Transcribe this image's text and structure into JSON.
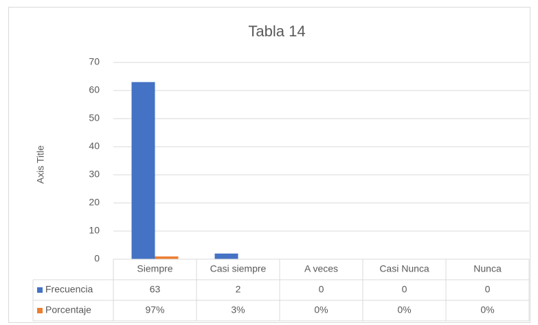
{
  "chart_data": {
    "type": "bar",
    "title": "Tabla 14",
    "y_axis_label": "Axis Title",
    "categories": [
      "Siempre",
      "Casi siempre",
      "A veces",
      "Casi Nunca",
      "Nunca"
    ],
    "series": [
      {
        "name": "Frecuencia",
        "color": "#4472c4",
        "values": [
          63,
          2,
          0,
          0,
          0
        ]
      },
      {
        "name": "Porcentaje",
        "color": "#ed7d31",
        "values": [
          0.97,
          0.03,
          0,
          0,
          0
        ],
        "value_labels": [
          "97%",
          "3%",
          "0%",
          "0%",
          "0%"
        ]
      }
    ],
    "ylim": [
      0,
      70
    ],
    "yticks": [
      0,
      10,
      20,
      30,
      40,
      50,
      60,
      70
    ],
    "grid": true,
    "data_table": true
  }
}
